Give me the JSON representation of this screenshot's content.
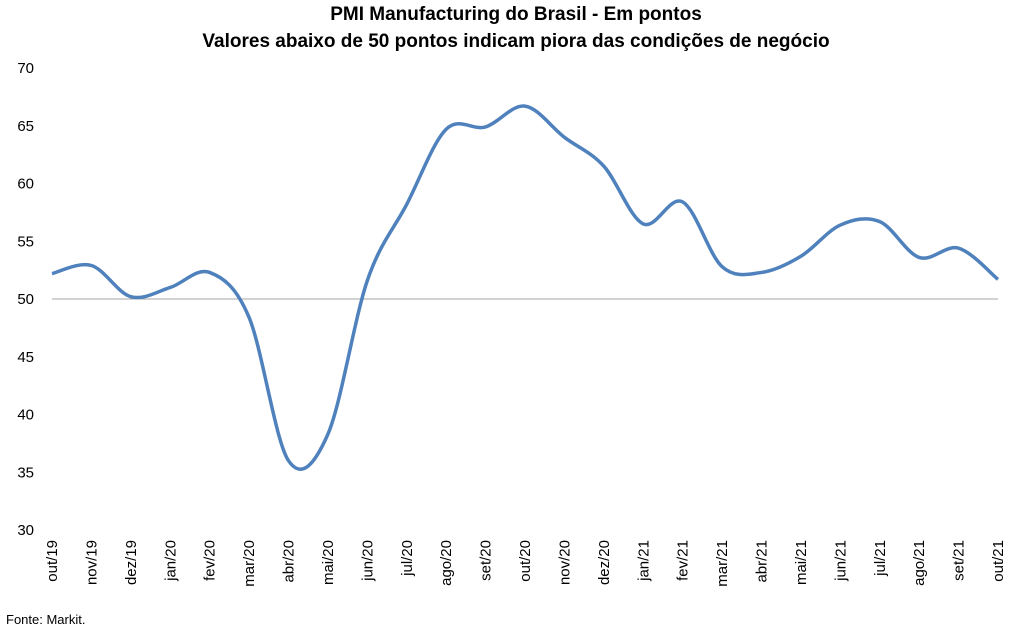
{
  "chart_data": {
    "type": "line",
    "title": "PMI Manufacturing do Brasil - Em pontos",
    "subtitle": "Valores abaixo de 50 pontos indicam piora das condições de negócio",
    "categories": [
      "out/19",
      "nov/19",
      "dez/19",
      "jan/20",
      "fev/20",
      "mar/20",
      "abr/20",
      "mai/20",
      "jun/20",
      "jul/20",
      "ago/20",
      "set/20",
      "out/20",
      "nov/20",
      "dez/20",
      "jan/21",
      "fev/21",
      "mar/21",
      "abr/21",
      "mai/21",
      "jun/21",
      "jul/21",
      "ago/21",
      "set/21",
      "out/21"
    ],
    "series": [
      {
        "name": "PMI",
        "color": "#4f81bd",
        "values": [
          52.2,
          52.9,
          50.2,
          51.0,
          52.3,
          48.4,
          36.0,
          38.3,
          51.6,
          58.2,
          64.7,
          64.9,
          66.7,
          64.0,
          61.5,
          56.5,
          58.4,
          52.8,
          52.3,
          53.7,
          56.4,
          56.7,
          53.6,
          54.4,
          51.7
        ]
      }
    ],
    "ylim": [
      30,
      70
    ],
    "yticks": [
      30,
      35,
      40,
      45,
      50,
      55,
      60,
      65,
      70
    ],
    "reference_line": 50,
    "source": "Fonte: Markit."
  }
}
